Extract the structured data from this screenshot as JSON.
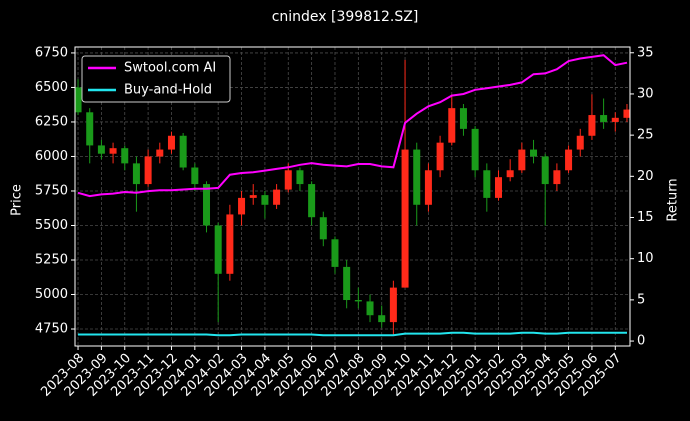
{
  "chart_data": {
    "type": "candlestick",
    "title": "cnindex [399812.SZ]",
    "categories": [
      "2023-08",
      null,
      "2023-09",
      null,
      "2023-10",
      null,
      "2023-11",
      null,
      "2023-12",
      null,
      "2024-01",
      null,
      "2024-02",
      null,
      "2024-03",
      null,
      "2024-04",
      null,
      "2024-05",
      null,
      "2024-06",
      null,
      "2024-07",
      null,
      "2024-08",
      null,
      "2024-09",
      null,
      "2024-10",
      null,
      "2024-11",
      null,
      "2024-12",
      null,
      "2025-01",
      null,
      "2025-02",
      null,
      "2025-03",
      null,
      "2025-04",
      null,
      "2025-05",
      null,
      "2025-06",
      null,
      "2025-07",
      null
    ],
    "open": [
      6500,
      6320,
      6080,
      6020,
      6060,
      5950,
      5800,
      6000,
      6050,
      6150,
      5920,
      5800,
      5500,
      5150,
      5580,
      5700,
      5720,
      5650,
      5760,
      5900,
      5800,
      5560,
      5400,
      5200,
      4960,
      4950,
      4850,
      4800,
      5050,
      6050,
      5650,
      5900,
      6100,
      6350,
      6200,
      5900,
      5700,
      5850,
      5900,
      6050,
      6000,
      5800,
      5900,
      6050,
      6150,
      6300,
      6250,
      6280
    ],
    "high": [
      6560,
      6350,
      6120,
      6100,
      6080,
      6000,
      6050,
      6100,
      6180,
      6170,
      5950,
      5820,
      5520,
      5650,
      5750,
      5800,
      5750,
      5800,
      5950,
      5920,
      5820,
      5600,
      5420,
      5250,
      5050,
      5000,
      4920,
      5100,
      6700,
      6100,
      5950,
      6150,
      6450,
      6380,
      6220,
      5950,
      5900,
      5980,
      6100,
      6120,
      6020,
      5950,
      6080,
      6200,
      6450,
      6420,
      6320,
      6380
    ],
    "low": [
      6300,
      5950,
      5980,
      5950,
      5900,
      5600,
      5780,
      5950,
      6020,
      5900,
      5750,
      5450,
      4800,
      5100,
      5500,
      5650,
      5550,
      5620,
      5740,
      5750,
      5500,
      5350,
      5150,
      4900,
      4900,
      4800,
      4760,
      4700,
      5050,
      5500,
      5600,
      5850,
      6080,
      6150,
      5850,
      5600,
      5680,
      5820,
      5880,
      5950,
      5500,
      5750,
      5880,
      6000,
      6120,
      6200,
      6180,
      6250
    ],
    "close": [
      6320,
      6080,
      6020,
      6060,
      5950,
      5800,
      6000,
      6050,
      6150,
      5920,
      5800,
      5500,
      5150,
      5580,
      5700,
      5720,
      5650,
      5760,
      5900,
      5800,
      5560,
      5400,
      5200,
      4960,
      4950,
      4850,
      4800,
      5050,
      6050,
      5650,
      5900,
      6100,
      6350,
      6200,
      5900,
      5700,
      5850,
      5900,
      6050,
      6000,
      5800,
      5900,
      6050,
      6150,
      6300,
      6250,
      6280,
      6340
    ],
    "up_color": "#ff2a1a",
    "down_color": "#1a9a1a",
    "series": [
      {
        "name": "Swtool.com AI",
        "color": "#ff00ff",
        "axis": "y2",
        "values": [
          18.0,
          17.6,
          17.8,
          17.9,
          18.1,
          18.0,
          18.2,
          18.3,
          18.3,
          18.4,
          18.5,
          18.5,
          18.6,
          20.2,
          20.4,
          20.5,
          20.7,
          20.9,
          21.1,
          21.4,
          21.6,
          21.4,
          21.3,
          21.2,
          21.5,
          21.5,
          21.2,
          21.1,
          26.5,
          27.6,
          28.5,
          29.0,
          29.8,
          30.0,
          30.5,
          30.7,
          30.9,
          31.1,
          31.4,
          32.4,
          32.5,
          33.0,
          34.0,
          34.3,
          34.5,
          34.7,
          33.5,
          33.8
        ]
      },
      {
        "name": "Buy-and-Hold",
        "color": "#22e5ee",
        "axis": "y2",
        "values": [
          0.8,
          0.8,
          0.8,
          0.8,
          0.8,
          0.8,
          0.8,
          0.8,
          0.8,
          0.8,
          0.8,
          0.8,
          0.7,
          0.7,
          0.8,
          0.8,
          0.8,
          0.8,
          0.8,
          0.8,
          0.8,
          0.7,
          0.7,
          0.7,
          0.7,
          0.7,
          0.7,
          0.7,
          0.9,
          0.9,
          0.9,
          0.9,
          1.0,
          1.0,
          0.9,
          0.9,
          0.9,
          0.9,
          1.0,
          1.0,
          0.9,
          0.9,
          1.0,
          1.0,
          1.0,
          1.0,
          1.0,
          1.0
        ]
      }
    ],
    "ylabel": "Price",
    "y2label": "Return",
    "ylim": [
      4627,
      6793
    ],
    "yticks": [
      4750,
      5000,
      5250,
      5500,
      5750,
      6000,
      6250,
      6500,
      6750
    ],
    "y2lim": [
      -0.6,
      35.7
    ],
    "y2ticks": [
      0,
      5,
      10,
      15,
      20,
      25,
      30,
      35
    ],
    "grid": true,
    "legend": "upper left"
  }
}
